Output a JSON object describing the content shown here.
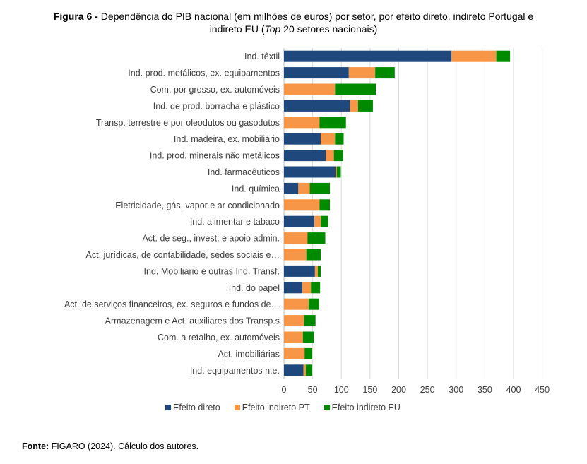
{
  "figure": {
    "label": "Figura 6 -",
    "title_part1": " Dependência do PIB nacional (em milhões de euros) por setor, por efeito direto, indireto Portugal e",
    "title_part2a": "indireto EU (",
    "title_italic": "Top",
    "title_part2b": " 20 setores nacionais)"
  },
  "source": {
    "label": "Fonte:",
    "text": " FIGARO (2024). Cálculo dos autores."
  },
  "chart_data": {
    "type": "bar",
    "orientation": "horizontal",
    "stacked": true,
    "title": "Dependência do PIB nacional (em milhões de euros) por setor, por efeito direto, indireto Portugal e indireto EU (Top 20 setores nacionais)",
    "xlabel": "",
    "ylabel": "",
    "xlim": [
      0,
      450
    ],
    "xticks": [
      0,
      50,
      100,
      150,
      200,
      250,
      300,
      350,
      400,
      450
    ],
    "grid": "vertical",
    "legend_position": "bottom",
    "categories": [
      "Ind. têxtil",
      "Ind. prod. metálicos, ex. equipamentos",
      "Com. por grosso, ex. automóveis",
      "Ind. de prod. borracha e plástico",
      "Transp. terrestre e por oleodutos ou gasodutos",
      "Ind. madeira, ex. mobiliário",
      "Ind. prod. minerais não metálicos",
      "Ind. farmacêuticos",
      "Ind. química",
      "Eletricidade, gás, vapor e ar condicionado",
      "Ind. alimentar e tabaco",
      "Act. de seg., invest, e apoio admin.",
      "Act. jurídicas, de contabilidade, sedes sociais e…",
      "Ind. Mobiliário e outras Ind. Transf.",
      "Ind. do papel",
      "Act. de serviços financeiros, ex. seguros e fundos de…",
      "Armazenagem e Act. auxiliares dos Transp.s",
      "Com. a retalho, ex. automóveis",
      "Act. imobiliárias",
      "Ind. equipamentos n.e."
    ],
    "series": [
      {
        "name": "Efeito direto",
        "color": "#1F497D",
        "values": [
          292,
          113,
          0,
          115,
          0,
          64,
          73,
          90,
          25,
          0,
          53,
          0,
          0,
          54,
          32,
          0,
          0,
          0,
          0,
          34
        ]
      },
      {
        "name": "Efeito indireto PT",
        "color": "#F79646",
        "values": [
          78,
          46,
          89,
          14,
          62,
          25,
          14,
          2,
          20,
          62,
          11,
          41,
          39,
          5,
          15,
          43,
          35,
          33,
          36,
          4
        ]
      },
      {
        "name": "Efeito indireto EU",
        "color": "#008A00",
        "values": [
          24,
          34,
          71,
          26,
          46,
          15,
          16,
          7,
          35,
          18,
          13,
          31,
          25,
          5,
          16,
          18,
          20,
          19,
          13,
          11
        ]
      }
    ]
  }
}
